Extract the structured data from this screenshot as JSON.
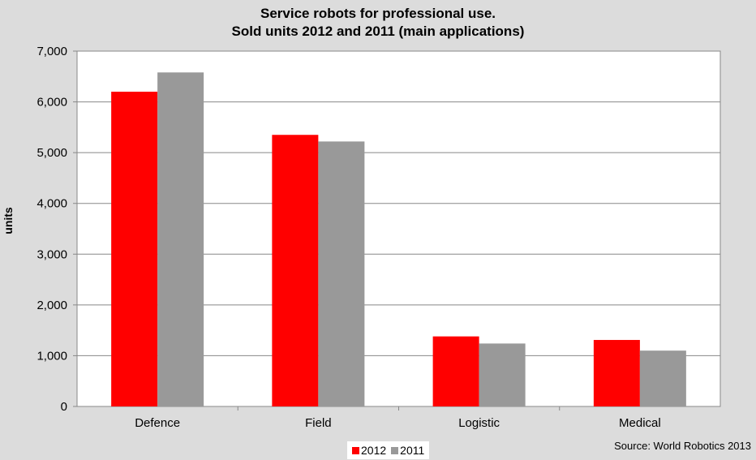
{
  "chart_data": {
    "type": "bar",
    "title": [
      "Service robots for professional use.",
      "Sold units 2012 and 2011 (main applications)"
    ],
    "ylabel": "units",
    "categories": [
      "Defence",
      "Field",
      "Logistic",
      "Medical"
    ],
    "series": [
      {
        "name": "2012",
        "color": "#ff0000",
        "values": [
          6200,
          5350,
          1380,
          1310
        ]
      },
      {
        "name": "2011",
        "color": "#999999",
        "values": [
          6580,
          5220,
          1240,
          1100
        ]
      }
    ],
    "ylim": [
      0,
      7000
    ],
    "yticks": [
      0,
      1000,
      2000,
      3000,
      4000,
      5000,
      6000,
      7000
    ],
    "ytick_labels": [
      "0",
      "1,000",
      "2,000",
      "3,000",
      "4,000",
      "5,000",
      "6,000",
      "7,000"
    ],
    "grid": true,
    "legend_position": "bottom-center",
    "source": "Source: World Robotics 2013"
  }
}
